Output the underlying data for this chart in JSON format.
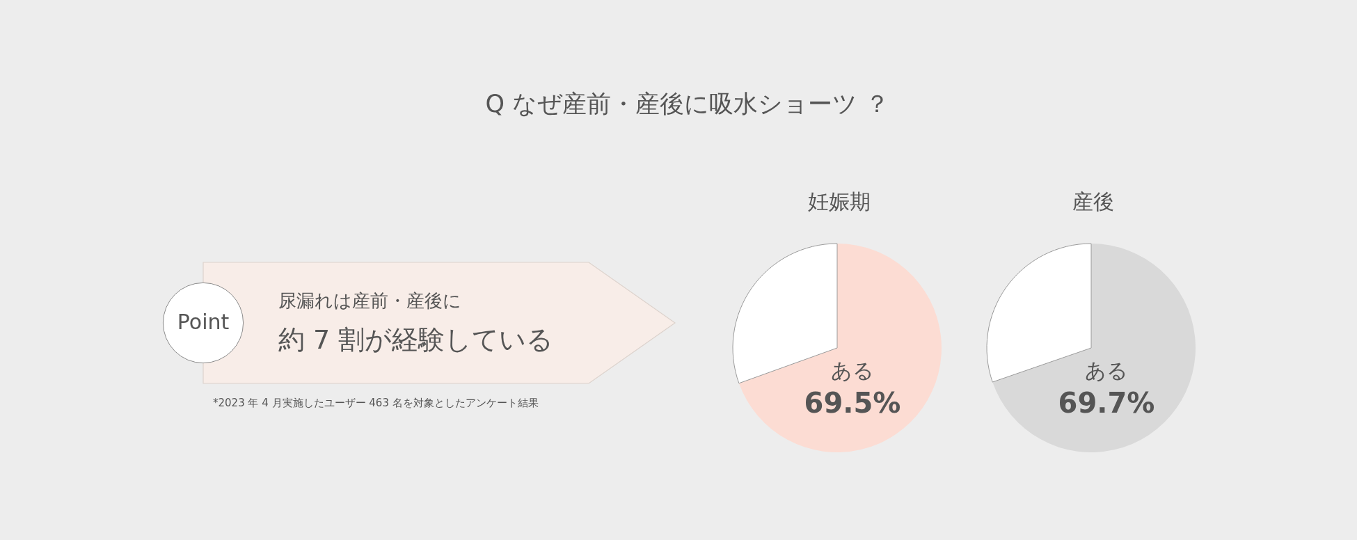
{
  "chart_data": [
    {
      "type": "other",
      "title": "Q なぜ産前・産後に吸水ショーツ ？",
      "annotations": [
        "Point",
        "尿漏れは産前・産後に",
        "約 7 割が経験している",
        "*2023 年 4 月実施したユーザー 463 名を対象としたアンケート結果"
      ]
    },
    {
      "type": "pie",
      "title": "妊娠期",
      "categories": [
        "ある",
        null
      ],
      "values": [
        69.5,
        30.5
      ],
      "colors": [
        "#fcdcd3",
        "#ffffff"
      ],
      "value_labels": [
        "69.5%",
        null
      ]
    },
    {
      "type": "pie",
      "title": "産後",
      "categories": [
        "ある",
        null
      ],
      "values": [
        69.7,
        30.3
      ],
      "colors": [
        "#d9d9d9",
        "#ffffff"
      ],
      "value_labels": [
        "69.7%",
        null
      ]
    }
  ]
}
